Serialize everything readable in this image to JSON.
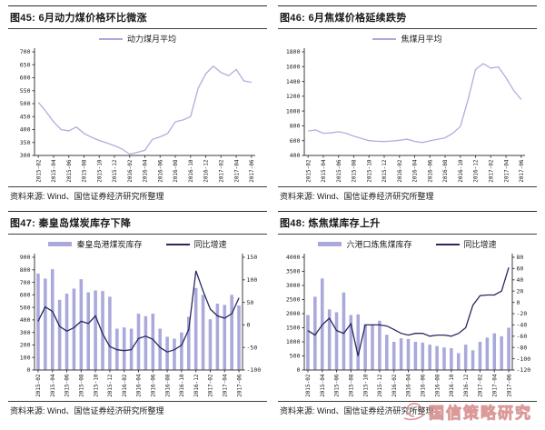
{
  "source_note": "资料来源: Wind、国信证券经济研究所整理",
  "watermark": {
    "text": "国信策略研究"
  },
  "colors": {
    "accent_light": "#a9a9dc",
    "accent_dark": "#28285f",
    "rule": "#3c3c3c",
    "text": "#1f1f1f",
    "watermark": "#d89090"
  },
  "chart_data": [
    {
      "type": "line",
      "title": "图45: 6月动力煤价格环比微涨",
      "legend_position": "top",
      "grid": false,
      "x_label_every": 2,
      "ylim": [
        300,
        700
      ],
      "y_step": 50,
      "categories": [
        "2015-02",
        "2015-03",
        "2015-04",
        "2015-05",
        "2015-06",
        "2015-07",
        "2015-08",
        "2015-09",
        "2015-10",
        "2015-11",
        "2015-12",
        "2016-01",
        "2016-02",
        "2016-03",
        "2016-04",
        "2016-05",
        "2016-06",
        "2016-07",
        "2016-08",
        "2016-09",
        "2016-10",
        "2016-11",
        "2016-12",
        "2017-01",
        "2017-02",
        "2017-03",
        "2017-04",
        "2017-05",
        "2017-06"
      ],
      "series": [
        {
          "name": "动力煤月平均",
          "type": "line",
          "axis": "left",
          "color": "#aeaedd",
          "values": [
            505,
            470,
            430,
            400,
            395,
            410,
            385,
            370,
            358,
            348,
            338,
            325,
            305,
            312,
            320,
            362,
            372,
            385,
            430,
            437,
            450,
            560,
            615,
            645,
            620,
            608,
            632,
            588,
            582
          ]
        }
      ]
    },
    {
      "type": "line",
      "title": "图46: 6月焦煤价格延续跌势",
      "legend_position": "top",
      "grid": false,
      "x_label_every": 2,
      "ylim": [
        400,
        1800
      ],
      "y_step": 200,
      "categories": [
        "2015-02",
        "2015-03",
        "2015-04",
        "2015-05",
        "2015-06",
        "2015-07",
        "2015-08",
        "2015-09",
        "2015-10",
        "2015-11",
        "2015-12",
        "2016-01",
        "2016-02",
        "2016-03",
        "2016-04",
        "2016-05",
        "2016-06",
        "2016-07",
        "2016-08",
        "2016-09",
        "2016-10",
        "2016-11",
        "2016-12",
        "2017-01",
        "2017-02",
        "2017-03",
        "2017-04",
        "2017-05",
        "2017-06"
      ],
      "series": [
        {
          "name": "焦煤月平均",
          "type": "line",
          "axis": "left",
          "color": "#aeaedd",
          "values": [
            730,
            745,
            700,
            705,
            720,
            700,
            660,
            630,
            600,
            592,
            588,
            595,
            605,
            620,
            590,
            575,
            598,
            618,
            638,
            700,
            790,
            1150,
            1560,
            1640,
            1580,
            1595,
            1450,
            1280,
            1155
          ]
        }
      ]
    },
    {
      "type": "bar",
      "title": "图47: 秦皇岛煤炭库存下降",
      "legend_position": "top",
      "grid": false,
      "x_label_every": 2,
      "ylim": [
        0,
        900
      ],
      "y_step": 100,
      "y2lim": [
        -100,
        150
      ],
      "y2_step": 50,
      "categories": [
        "2015-02",
        "2015-03",
        "2015-04",
        "2015-05",
        "2015-06",
        "2015-07",
        "2015-08",
        "2015-09",
        "2015-10",
        "2015-11",
        "2015-12",
        "2016-01",
        "2016-02",
        "2016-03",
        "2016-04",
        "2016-05",
        "2016-06",
        "2016-07",
        "2016-08",
        "2016-09",
        "2016-10",
        "2016-11",
        "2016-12",
        "2017-01",
        "2017-02",
        "2017-03",
        "2017-04",
        "2017-05",
        "2017-06"
      ],
      "series": [
        {
          "name": "秦皇岛港煤炭库存",
          "type": "bar",
          "axis": "left",
          "color": "#a9a9dc",
          "values": [
            770,
            730,
            805,
            560,
            610,
            650,
            725,
            620,
            635,
            630,
            585,
            330,
            340,
            330,
            450,
            430,
            450,
            330,
            265,
            250,
            300,
            425,
            655,
            600,
            405,
            530,
            520,
            600,
            515
          ]
        },
        {
          "name": "同比增速",
          "type": "line",
          "axis": "right",
          "color": "#28285f",
          "values": [
            8,
            40,
            30,
            -3,
            -14,
            -6,
            8,
            3,
            20,
            -20,
            -48,
            -55,
            -57,
            -55,
            -30,
            -25,
            -32,
            -50,
            -60,
            -55,
            -45,
            -10,
            120,
            75,
            35,
            20,
            15,
            25,
            60
          ]
        }
      ]
    },
    {
      "type": "bar",
      "title": "图48: 炼焦煤库存上升",
      "legend_position": "top",
      "grid": false,
      "x_label_every": 2,
      "ylim": [
        0,
        4000
      ],
      "y_step": 500,
      "y2lim": [
        -120,
        80
      ],
      "y2_step": 20,
      "categories": [
        "2015-02",
        "2015-03",
        "2015-04",
        "2015-05",
        "2015-06",
        "2015-07",
        "2015-08",
        "2015-09",
        "2015-10",
        "2015-11",
        "2015-12",
        "2016-01",
        "2016-02",
        "2016-03",
        "2016-04",
        "2016-05",
        "2016-06",
        "2016-07",
        "2016-08",
        "2016-09",
        "2016-10",
        "2016-11",
        "2016-12",
        "2017-01",
        "2017-02",
        "2017-03",
        "2017-04",
        "2017-05",
        "2017-06"
      ],
      "series": [
        {
          "name": "六港口炼焦煤库存",
          "type": "bar",
          "axis": "left",
          "color": "#a9a9dc",
          "values": [
            1950,
            2600,
            3250,
            2150,
            2050,
            2750,
            1950,
            1975,
            1625,
            1625,
            1750,
            1250,
            1000,
            1125,
            1100,
            1000,
            975,
            900,
            850,
            800,
            775,
            600,
            900,
            700,
            1000,
            1150,
            1300,
            1200,
            1500
          ]
        },
        {
          "name": "同比增速",
          "type": "line",
          "axis": "right",
          "color": "#28285f",
          "values": [
            -50,
            -58,
            -40,
            -28,
            -50,
            -55,
            -38,
            -95,
            -40,
            -40,
            -40,
            -42,
            -48,
            -55,
            -58,
            -55,
            -55,
            -60,
            -58,
            -58,
            -60,
            -55,
            -45,
            -5,
            12,
            13,
            13,
            20,
            62
          ]
        }
      ]
    }
  ]
}
